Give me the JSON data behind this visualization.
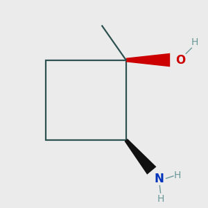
{
  "bg_color": "#ebebeb",
  "ring_color": "#2d5050",
  "ring_linewidth": 1.6,
  "wedge_oh_color": "#cc0000",
  "wedge_nh_color": "#111111",
  "o_color": "#cc0000",
  "n_color": "#0033bb",
  "h_color": "#6a9999",
  "text_O": "O",
  "text_N": "N",
  "text_H_oh": "H",
  "text_H_n1": "H",
  "text_H_n2": "H"
}
